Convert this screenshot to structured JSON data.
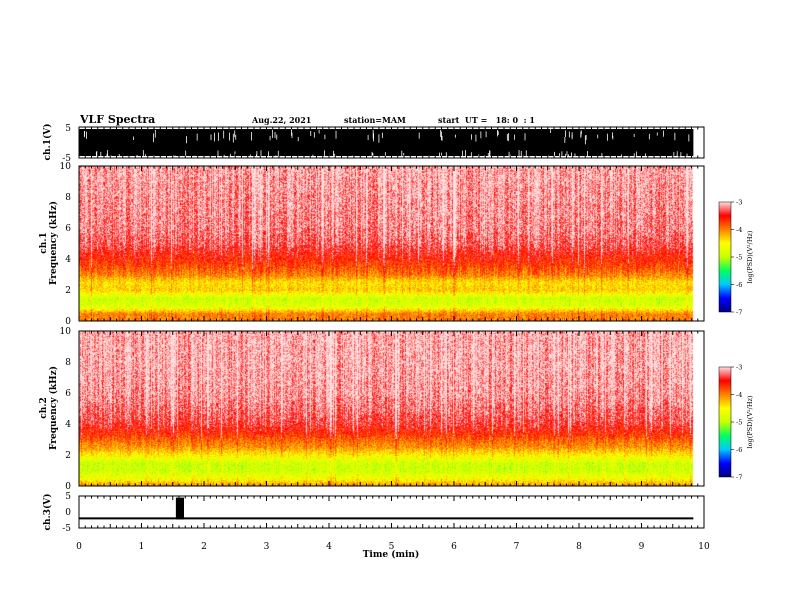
{
  "header": {
    "title": "VLF Spectra",
    "date": "Aug.22, 2021",
    "station": "station=MAM",
    "start": "start  UT =   18: 0  : 1"
  },
  "chart_data": [
    {
      "type": "line",
      "name": "ch1-waveform",
      "ylabel": "ch.1(V)",
      "ylim": [
        -5,
        5
      ],
      "yticks": [
        "5",
        "-5"
      ],
      "xlim": [
        0,
        10
      ],
      "description_values": {
        "data_end_min": 9.83
      }
    },
    {
      "type": "heatmap",
      "name": "ch1-spectrogram",
      "ylabel": "ch.1\nFrequency (kHz)",
      "ylabel_lines": [
        "ch.1",
        "Frequency (kHz)"
      ],
      "ylim": [
        0,
        10
      ],
      "yticks": [
        "0",
        "2",
        "4",
        "6",
        "8",
        "10"
      ],
      "xlim": [
        0,
        10
      ],
      "profile_kHz_logPSD": [
        [
          0,
          -4.0
        ],
        [
          0.5,
          -4.0
        ],
        [
          1.0,
          -4.8
        ],
        [
          1.5,
          -4.9
        ],
        [
          2.0,
          -4.3
        ],
        [
          2.5,
          -4.4
        ],
        [
          3.0,
          -4.0
        ],
        [
          3.5,
          -3.8
        ],
        [
          4.0,
          -3.6
        ],
        [
          5.0,
          -3.3
        ],
        [
          6.0,
          -3.2
        ],
        [
          8.0,
          -3.15
        ],
        [
          10.0,
          -3.1
        ]
      ]
    },
    {
      "type": "heatmap",
      "name": "ch2-spectrogram",
      "ylabel": "ch.2\nFrequency (kHz)",
      "ylabel_lines": [
        "ch.2",
        "Frequency (kHz)"
      ],
      "ylim": [
        0,
        10
      ],
      "yticks": [
        "0",
        "2",
        "4",
        "6",
        "8",
        "10"
      ],
      "xlim": [
        0,
        10
      ],
      "profile_kHz_logPSD": [
        [
          0,
          -4.0
        ],
        [
          0.5,
          -4.6
        ],
        [
          1.0,
          -4.9
        ],
        [
          1.5,
          -4.9
        ],
        [
          2.0,
          -4.5
        ],
        [
          2.5,
          -4.1
        ],
        [
          3.0,
          -3.9
        ],
        [
          3.5,
          -3.6
        ],
        [
          4.0,
          -3.4
        ],
        [
          5.0,
          -3.25
        ],
        [
          6.0,
          -3.15
        ],
        [
          8.0,
          -3.1
        ],
        [
          10.0,
          -3.1
        ]
      ]
    },
    {
      "type": "line",
      "name": "ch3-signal",
      "ylabel": "ch.3(V)",
      "ylim": [
        -5,
        5
      ],
      "yticks": [
        "5",
        "0",
        "-5"
      ],
      "xlim": [
        0,
        10
      ],
      "baseline_V": -2,
      "pulse": {
        "start_min": 1.55,
        "end_min": 1.68,
        "top_V": 4.5
      }
    }
  ],
  "xaxis": {
    "label": "Time (min)",
    "ticks": [
      "0",
      "1",
      "2",
      "3",
      "4",
      "5",
      "6",
      "7",
      "8",
      "9",
      "10"
    ]
  },
  "colorbar": {
    "label": "log(PSD)(V²/Hz)",
    "ticks": [
      "-3",
      "-4",
      "-5",
      "-6",
      "-7"
    ],
    "range": [
      -7,
      -3
    ],
    "colors": [
      "#000080",
      "#0000ff",
      "#00c8ff",
      "#00ff60",
      "#c8ff00",
      "#ffff00",
      "#ff8000",
      "#ff0000",
      "#ffe0e0"
    ]
  }
}
